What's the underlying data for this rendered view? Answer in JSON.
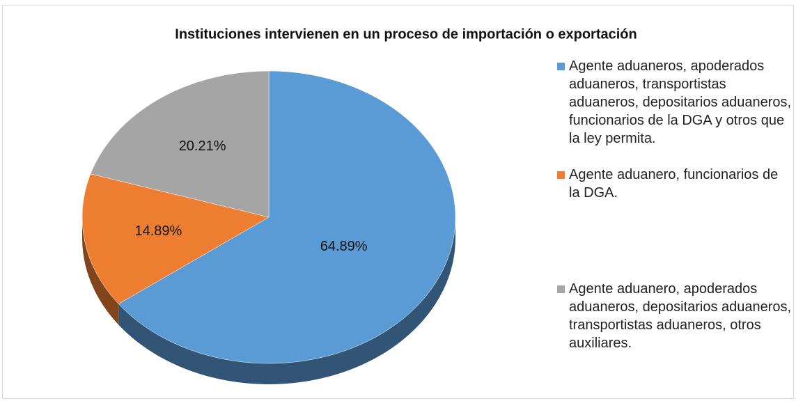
{
  "chart_data": {
    "type": "pie",
    "title": "Instituciones intervienen en un proceso de importación o exportación",
    "categories": [
      "Agente aduaneros, apoderados aduaneros, transportistas aduaneros, depositarios aduaneros, funcionarios de la DGA y otros que la ley permita.",
      "Agente aduanero, funcionarios de la DGA.",
      "Agente aduanero, apoderados aduaneros, depositarios aduaneros, transportistas aduaneros, otros auxiliares."
    ],
    "values": [
      64.89,
      14.89,
      20.21
    ],
    "value_labels": [
      "64.89%",
      "14.89%",
      "20.21%"
    ],
    "colors": [
      "#5b9bd5",
      "#ed7d31",
      "#a5a5a5"
    ],
    "legend": "right"
  }
}
